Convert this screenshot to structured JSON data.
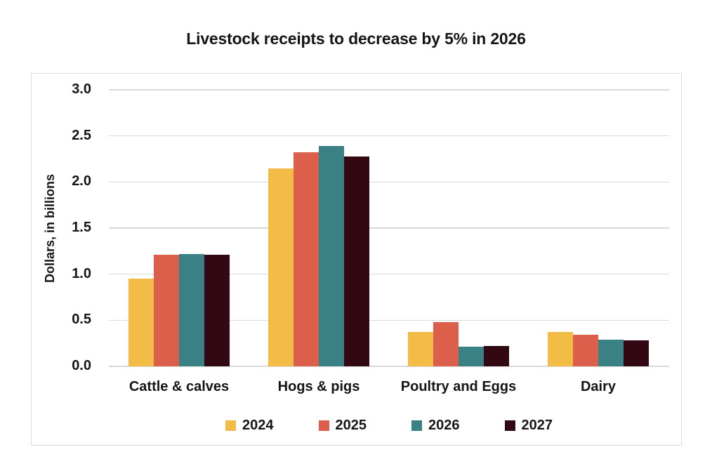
{
  "chart_data": {
    "type": "bar",
    "title": "Livestock receipts to decrease by 5% in 2026",
    "ylabel": "Dollars, in billions",
    "xlabel": "",
    "categories": [
      "Cattle & calves",
      "Hogs & pigs",
      "Poultry and Eggs",
      "Dairy"
    ],
    "series": [
      {
        "name": "2024",
        "color": "#F2BC46",
        "values": [
          0.95,
          2.15,
          0.37,
          0.37
        ]
      },
      {
        "name": "2025",
        "color": "#DC5F4B",
        "values": [
          1.21,
          2.32,
          0.48,
          0.34
        ]
      },
      {
        "name": "2026",
        "color": "#3A8186",
        "values": [
          1.22,
          2.39,
          0.21,
          0.29
        ]
      },
      {
        "name": "2027",
        "color": "#320813",
        "values": [
          1.21,
          2.28,
          0.22,
          0.28
        ]
      }
    ],
    "ylim": [
      0,
      3.0
    ],
    "yticks": [
      0,
      0.5,
      1.0,
      1.5,
      2.0,
      2.5,
      3.0
    ],
    "grid": true,
    "legend_position": "bottom",
    "gridline_color": "#D9D9D9",
    "text_color": "#151515",
    "background_color": "#FFFFFF",
    "card_border_color": "#DCDCDC"
  }
}
